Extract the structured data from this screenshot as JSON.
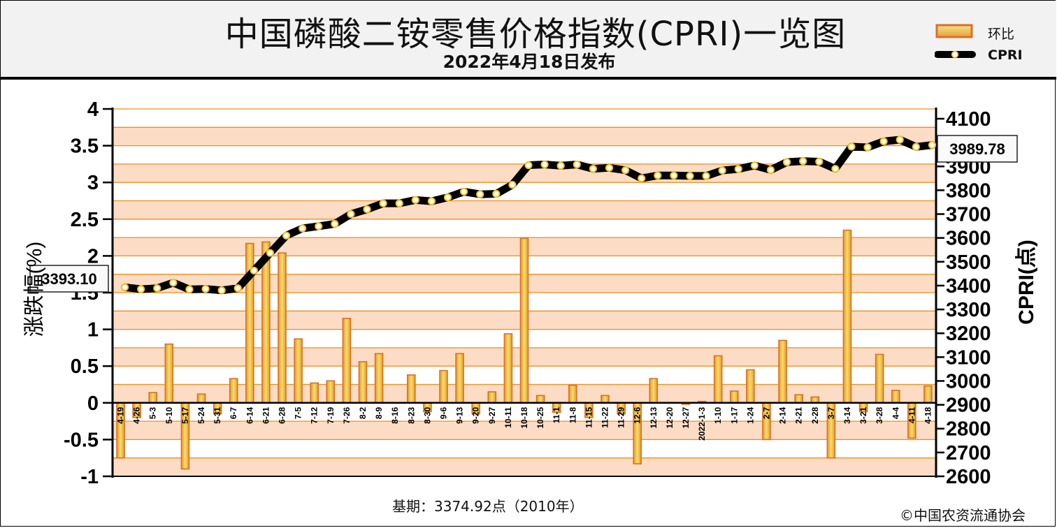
{
  "header": {
    "title": "中国磷酸二铵零售价格指数(CPRI)一览图",
    "subtitle": "2022年4月18日发布"
  },
  "legend": {
    "bar_label": "环比",
    "line_label": "CPRI"
  },
  "footer": {
    "base_period": "基期：3374.92点（2010年）",
    "copyright": "©中国农资流通协会"
  },
  "colors": {
    "bar": "#f0b128",
    "bar_edge": "#d9702a",
    "band": "#fcdcc4",
    "grid": "#ef8d1f",
    "line": "#000000",
    "marker": "#f3c21a"
  },
  "chart_data": {
    "type": "bar+line",
    "categories": [
      "4-19",
      "4-26",
      "5-3",
      "5-10",
      "5-17",
      "5-24",
      "5-31",
      "6-7",
      "6-14",
      "6-21",
      "6-28",
      "7-5",
      "7-12",
      "7-19",
      "7-26",
      "8-2",
      "8-9",
      "8-16",
      "8-23",
      "8-30",
      "9-6",
      "9-13",
      "9-20",
      "9-27",
      "10-11",
      "10-18",
      "10-25",
      "11-1",
      "11-8",
      "11-15",
      "11-22",
      "11-29",
      "12-6",
      "12-13",
      "12-20",
      "12-27",
      "2022-1-3",
      "1-10",
      "1-17",
      "1-24",
      "2-7",
      "2-14",
      "2-21",
      "2-28",
      "3-7",
      "3-14",
      "3-21",
      "3-28",
      "4-4",
      "4-11",
      "4-18"
    ],
    "series": [
      {
        "name": "环比",
        "axis": "left",
        "type": "bar",
        "values": [
          -0.75,
          -0.2,
          0.14,
          0.8,
          -0.9,
          0.12,
          -0.15,
          0.33,
          2.17,
          2.19,
          2.04,
          0.87,
          0.27,
          0.3,
          1.15,
          0.56,
          0.67,
          0,
          0.38,
          -0.12,
          0.44,
          0.67,
          -0.15,
          0.15,
          0.94,
          2.24,
          0.1,
          -0.13,
          0.24,
          -0.2,
          0.1,
          -0.15,
          -0.83,
          0.33,
          0,
          -0.02,
          0.02,
          0.64,
          0.16,
          0.45,
          -0.5,
          0.85,
          0.11,
          0.08,
          -0.75,
          2.35,
          -0.12,
          0.66,
          0.17,
          -0.48,
          0.23
        ]
      },
      {
        "name": "CPRI",
        "axis": "right",
        "type": "line",
        "values": [
          3393.1,
          3385,
          3389,
          3412,
          3384,
          3386,
          3380,
          3389,
          3463,
          3537,
          3610,
          3640,
          3649,
          3659,
          3700,
          3720,
          3745,
          3745,
          3759,
          3754,
          3770,
          3794,
          3783,
          3785,
          3823,
          3905,
          3908,
          3903,
          3908,
          3890,
          3894,
          3884,
          3850,
          3862,
          3862,
          3860,
          3860,
          3883,
          3889,
          3904,
          3885,
          3918,
          3922,
          3920,
          3890,
          3983,
          3980,
          4005,
          4012,
          3982,
          3989.78
        ]
      }
    ],
    "y_left": {
      "label": "涨跌幅(%)",
      "min": -1,
      "max": 4,
      "ticks": [
        "4",
        "3.5",
        "3",
        "2.5",
        "2",
        "1.5",
        "1",
        "0.5",
        "0",
        "-0.5",
        "-1"
      ]
    },
    "y_right": {
      "label": "CPRI(点)",
      "min": 2600,
      "max": 4100,
      "ticks": [
        "4100",
        "4000",
        "3900",
        "3800",
        "3700",
        "3600",
        "3500",
        "3400",
        "3300",
        "3200",
        "3100",
        "3000",
        "2900",
        "2800",
        "2700",
        "2600"
      ]
    },
    "callouts": {
      "first": "3393.10",
      "last": "3989.78"
    }
  }
}
